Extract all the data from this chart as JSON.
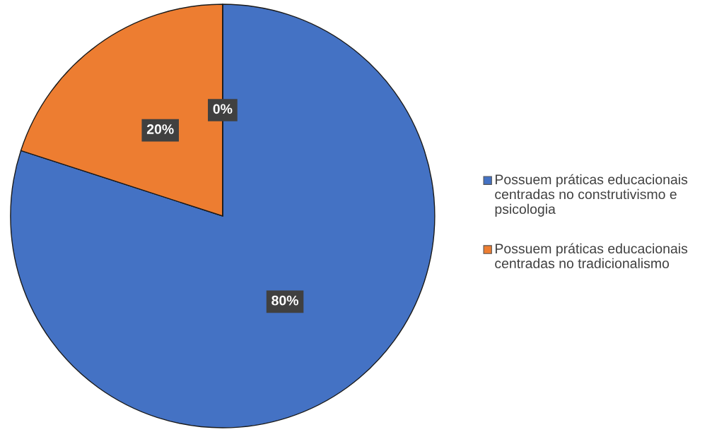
{
  "chart_data": {
    "type": "pie",
    "categories": [
      "Possuem práticas educacionais centradas no construtivismo e psicologia",
      "Possuem práticas educacionais centradas no tradicionalismo",
      null
    ],
    "values": [
      80,
      20,
      0
    ],
    "colors": [
      "#4472c4",
      "#ed7d31",
      "#a5a5a5"
    ],
    "value_labels": [
      "80%",
      "20%",
      "0%"
    ],
    "legend": "right"
  }
}
